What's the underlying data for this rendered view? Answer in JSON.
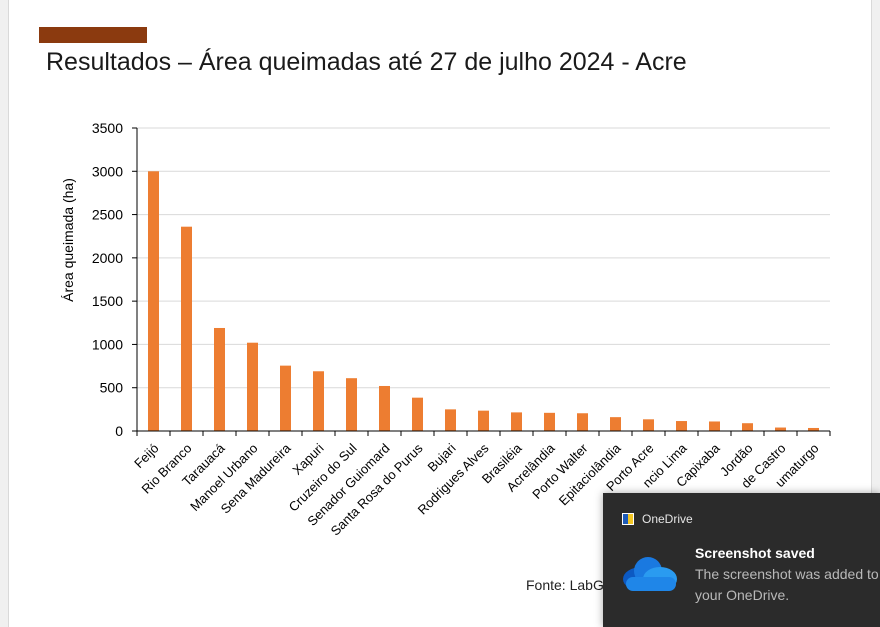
{
  "slide": {
    "title": "Resultados – Área queimadas até 27 de julho 2024 - Acre",
    "source_note": "Fonte: LabG",
    "accent_color": "#8b3a0f"
  },
  "chart_data": {
    "type": "bar",
    "title": "",
    "xlabel": "",
    "ylabel": "Área queimada (ha)",
    "ylim": [
      0,
      3500
    ],
    "yticks": [
      0,
      500,
      1000,
      1500,
      2000,
      2500,
      3000,
      3500
    ],
    "grid": true,
    "bar_color": "#ed7d31",
    "categories": [
      "Feijó",
      "Rio Branco",
      "Tarauacá",
      "Manoel Urbano",
      "Sena Madureira",
      "Xapuri",
      "Cruzeiro do Sul",
      "Senador Guiomard",
      "Santa Rosa do Purus",
      "Bujari",
      "Rodrigues Alves",
      "Brasiléia",
      "Acrelândia",
      "Porto Walter",
      "Epitaciolândia",
      "Porto Acre",
      "ncio Lima",
      "Capixaba",
      "Jordão",
      "de Castro",
      "umaturgo"
    ],
    "values": [
      3000,
      2360,
      1190,
      1020,
      755,
      690,
      610,
      520,
      385,
      250,
      235,
      215,
      210,
      205,
      160,
      135,
      115,
      110,
      90,
      40,
      35
    ]
  },
  "notification": {
    "app_name": "OneDrive",
    "title": "Screenshot saved",
    "body": "The screenshot was added to your OneDrive.",
    "background": "#2b2b2b"
  }
}
